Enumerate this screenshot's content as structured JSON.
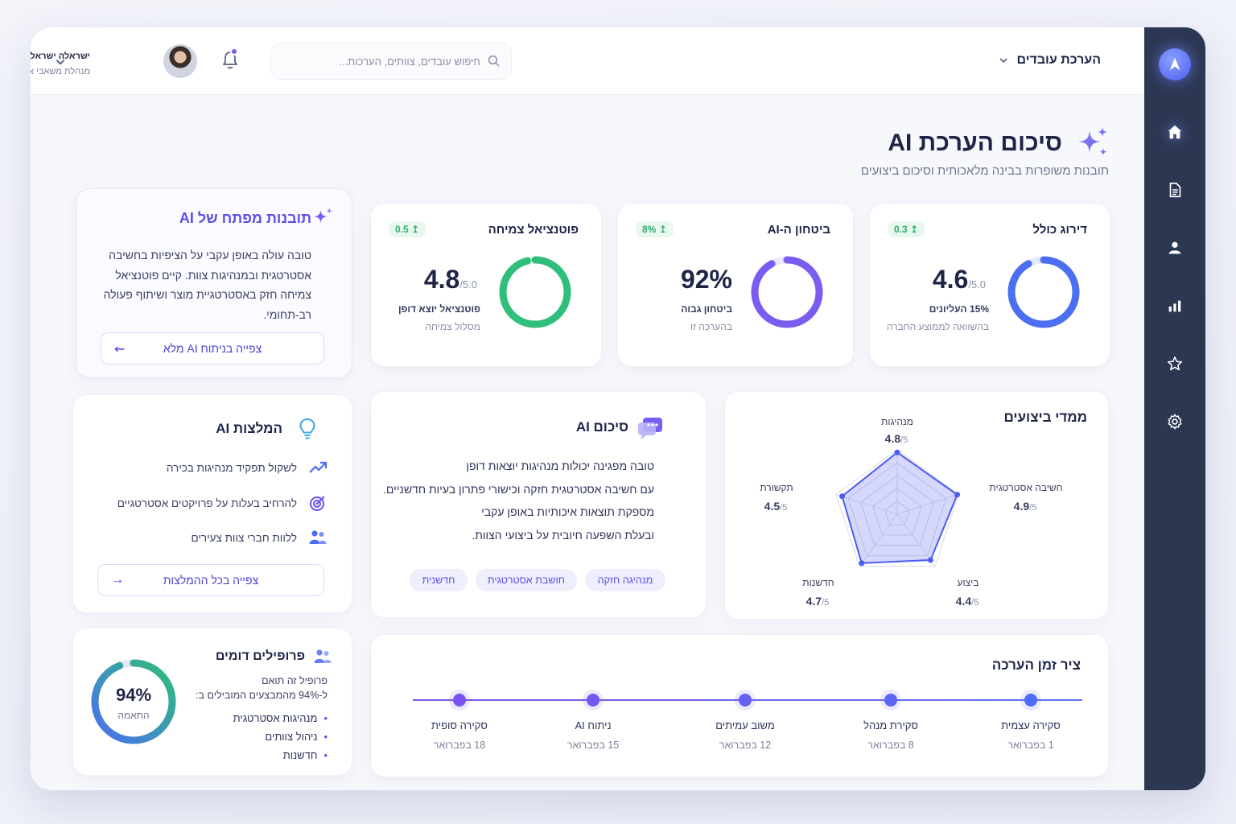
{
  "header": {
    "module_title": "הערכת עובדים",
    "search_placeholder": "חיפוש עובדים, צוותים, הערכות...",
    "user_name": "ישראלה ישראלי",
    "user_role": "מנהלת משאבי אנוש"
  },
  "page": {
    "title": "סיכום הערכת AI",
    "subtitle": "תובנות משופרות בבינה מלאכותית וסיכום ביצועים"
  },
  "metrics": [
    {
      "title": "דירוג כולל",
      "trend": "↥ 0.3",
      "value": "4.6",
      "max": "/5.0",
      "label": "15% העליונים",
      "note": "בהשוואה לממוצע החברה",
      "fill": 0.92,
      "color": "#4b6ef2"
    },
    {
      "title": "ביטחון ה-AI",
      "trend": "↥ 8%",
      "value": "92%",
      "max": "",
      "label": "ביטחון גבוה",
      "note": "בהערכה זו",
      "fill": 0.92,
      "color": "#7b5cf0"
    },
    {
      "title": "פוטנציאל צמיחה",
      "trend": "↥ 0.5",
      "value": "4.8",
      "max": "/5.0",
      "label": "פוטנציאל יוצא דופן",
      "note": "מסלול צמיחה",
      "fill": 0.96,
      "color": "#2fbf7a"
    }
  ],
  "insights": {
    "title": "תובנות מפתח של AI",
    "text": "טובה עולה באופן עקבי על הציפיות בחשיבה אסטרטגית ובמנהיגות צוות. קיים פוטנציאל צמיחה חזק באסטרטגיית מוצר ושיתוף פעולה רב-תחומי.",
    "button": "צפייה בניתוח AI מלא"
  },
  "performance": {
    "title": "ממדי ביצועים",
    "dims": [
      {
        "name": "מנהיגות",
        "value": "4.8",
        "max": "/5",
        "score": 4.8
      },
      {
        "name": "חשיבה אסטרטגית",
        "value": "4.9",
        "max": "/5",
        "score": 4.9
      },
      {
        "name": "ביצוע",
        "value": "4.4",
        "max": "/5",
        "score": 4.4
      },
      {
        "name": "חדשנות",
        "value": "4.7",
        "max": "/5",
        "score": 4.7
      },
      {
        "name": "תקשורת",
        "value": "4.5",
        "max": "/5",
        "score": 4.5
      }
    ]
  },
  "summary": {
    "title": "סיכום AI",
    "lines": [
      "טובה מפגינה יכולות מנהיגות יוצאות דופן",
      "עם חשיבה אסטרטגית חזקה וכישורי פתרון בעיות חדשניים.",
      "מספקת תוצאות איכותיות באופן עקבי",
      "ובעלת השפעה חיובית על ביצועי הצוות."
    ],
    "tags": [
      "מנהיגה חזקה",
      "חושבת אסטרטגית",
      "חדשנית"
    ]
  },
  "recommendations": {
    "title": "המלצות AI",
    "items": [
      "לשקול תפקיד מנהיגות בכירה",
      "להרחיב בעלות על פרויקטים אסטרטגיים",
      "ללוות חברי צוות צעירים"
    ],
    "button": "צפייה בכל ההמלצות"
  },
  "timeline": {
    "title": "ציר זמן הערכה",
    "steps": [
      {
        "name": "סקירה עצמית",
        "date": "1 בפברואר"
      },
      {
        "name": "סקירת מנהל",
        "date": "8 בפברואר"
      },
      {
        "name": "משוב עמיתים",
        "date": "12 בפברואר"
      },
      {
        "name": "ניתוח AI",
        "date": "15 בפברואר"
      },
      {
        "name": "סקירה סופית",
        "date": "18 בפברואר"
      }
    ]
  },
  "similar": {
    "title": "פרופילים דומים",
    "line1": "פרופיל זה תואם",
    "line2": "ל-94% מהמבצעים המובילים ב:",
    "items": [
      "מנהיגות אסטרטגית",
      "ניהול צוותים",
      "חדשנות"
    ],
    "match_value": "94%",
    "match_label": "התאמה",
    "match_fill": 0.94
  }
}
